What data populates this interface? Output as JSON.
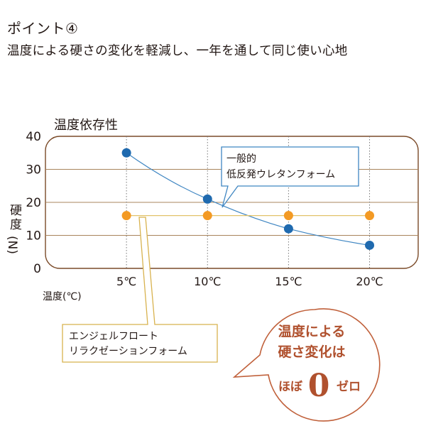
{
  "heading": {
    "title": "ポイント④",
    "subtitle": "温度による硬さの変化を軽減し、一年を通して同じ使い心地"
  },
  "colors": {
    "blue": "#1f6aaf",
    "orange": "#f39a24",
    "blue_line": "#3f86c2",
    "frame": "#7a4a28",
    "grid": "#a8845c",
    "bubble": "#c0603a",
    "callout_yellow": "#d8b24e"
  },
  "chart_data": {
    "type": "line",
    "title": "温度依存性",
    "xlabel": "温度(℃)",
    "ylabel": "硬度(N)",
    "ylabel_parts": [
      "硬",
      "度",
      "(N)"
    ],
    "categories": [
      "5℃",
      "10℃",
      "15℃",
      "20℃"
    ],
    "x": [
      5,
      10,
      15,
      20
    ],
    "xlim": [
      0,
      23
    ],
    "ylim": [
      0,
      40
    ],
    "yticks": [
      0,
      10,
      20,
      30,
      40
    ],
    "grid": true,
    "series": [
      {
        "name": "一般的低反発ウレタンフォーム",
        "label_lines": [
          "一般的",
          "低反発ウレタンフォーム"
        ],
        "color": "#1f6aaf",
        "line": true,
        "values": [
          35,
          21,
          12,
          7
        ]
      },
      {
        "name": "エンジェルフロートリラクゼーションフォーム",
        "label_lines": [
          "エンジェルフロート",
          "リラクゼーションフォーム"
        ],
        "color": "#f39a24",
        "line": false,
        "values": [
          16,
          16,
          16,
          16
        ]
      }
    ]
  },
  "bubble": {
    "line1": "温度による",
    "line2": "硬さ変化は",
    "line3_pre": "ほぼ",
    "line3_num": "0",
    "line3_post": "ゼロ"
  }
}
